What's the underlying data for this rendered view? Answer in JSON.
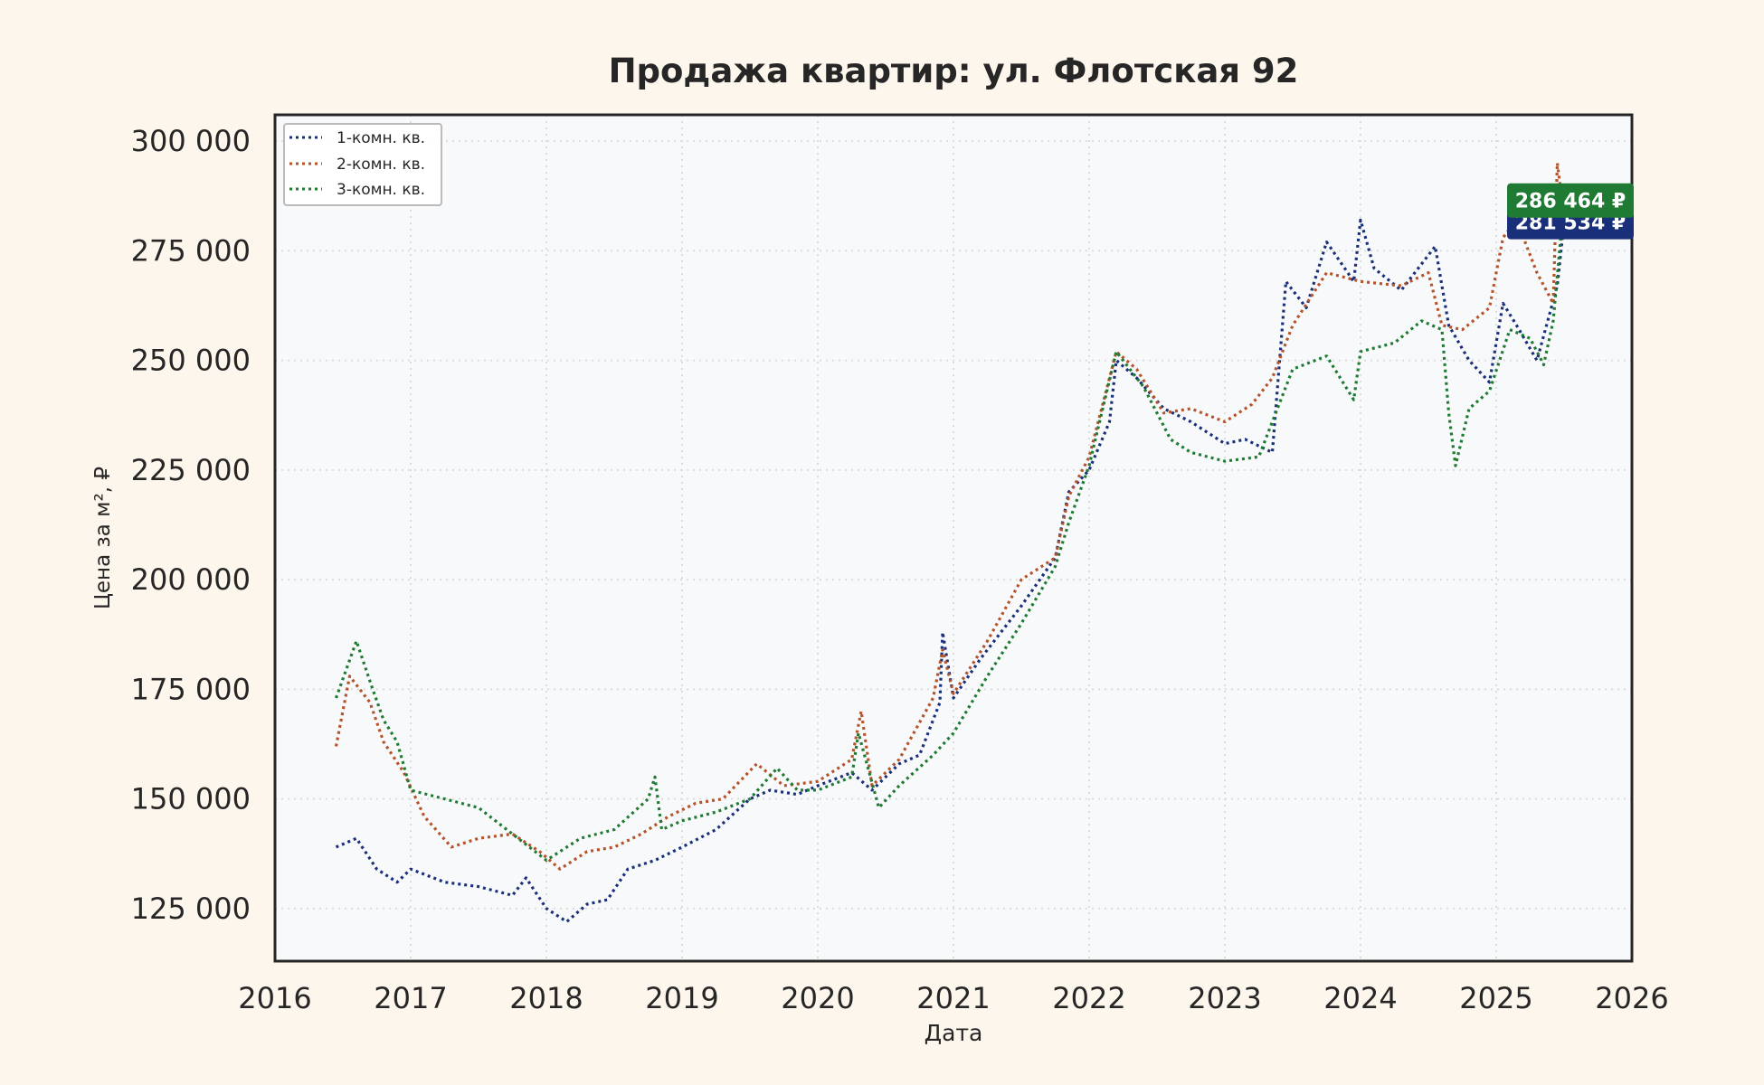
{
  "chart_data": {
    "type": "line",
    "title": "Продажа квартир: ул. Флотская 92",
    "xlabel": "Дата",
    "ylabel": "Цена за м², ₽",
    "xlim": [
      2016,
      2026
    ],
    "ylim": [
      113000,
      306000
    ],
    "x_ticks": [
      2016,
      2017,
      2018,
      2019,
      2020,
      2021,
      2022,
      2023,
      2024,
      2025,
      2026
    ],
    "x_tick_labels": [
      "2016",
      "2017",
      "2018",
      "2019",
      "2020",
      "2021",
      "2022",
      "2023",
      "2024",
      "2025",
      "2026"
    ],
    "y_ticks": [
      125000,
      150000,
      175000,
      200000,
      225000,
      250000,
      275000,
      300000
    ],
    "y_tick_labels": [
      "125 000",
      "150 000",
      "175 000",
      "200 000",
      "225 000",
      "250 000",
      "275 000",
      "300 000"
    ],
    "grid": true,
    "legend_position": "top-left",
    "line_style": "dotted",
    "colors": {
      "page_background": "#fdf6ec",
      "plot_background": "#f8f9fa",
      "text": "#262626",
      "grid": "#dcdcdc"
    },
    "series": [
      {
        "name": "1-комн. кв.",
        "color": "#1a2f7a",
        "end_label": "281 534 ₽",
        "x": [
          2016.45,
          2016.6,
          2016.75,
          2016.9,
          2017.0,
          2017.25,
          2017.5,
          2017.75,
          2017.85,
          2018.0,
          2018.15,
          2018.3,
          2018.45,
          2018.6,
          2018.8,
          2019.0,
          2019.25,
          2019.5,
          2019.65,
          2019.85,
          2020.0,
          2020.25,
          2020.4,
          2020.6,
          2020.75,
          2020.9,
          2020.92,
          2021.0,
          2021.2,
          2021.5,
          2021.75,
          2021.85,
          2022.0,
          2022.15,
          2022.2,
          2022.35,
          2022.55,
          2022.75,
          2023.0,
          2023.15,
          2023.35,
          2023.45,
          2023.6,
          2023.75,
          2023.95,
          2024.0,
          2024.1,
          2024.3,
          2024.55,
          2024.65,
          2024.8,
          2024.95,
          2025.05,
          2025.15,
          2025.3,
          2025.45,
          2025.5
        ],
        "y": [
          139000,
          141000,
          134000,
          131000,
          134000,
          131000,
          130000,
          128000,
          132000,
          125000,
          122000,
          126000,
          127000,
          134000,
          136000,
          139000,
          143000,
          150000,
          152000,
          151000,
          153000,
          156000,
          152000,
          158000,
          160000,
          172000,
          188000,
          173000,
          182000,
          194000,
          205000,
          220000,
          225000,
          236000,
          250000,
          246000,
          239000,
          236000,
          231000,
          232000,
          229000,
          268000,
          262000,
          277000,
          268000,
          282000,
          271000,
          266000,
          276000,
          258000,
          250000,
          245000,
          263000,
          258000,
          250000,
          267000,
          281534
        ]
      },
      {
        "name": "2-комн. кв.",
        "color": "#b5532b",
        "end_label": "",
        "x": [
          2016.45,
          2016.55,
          2016.7,
          2016.8,
          2016.95,
          2017.1,
          2017.3,
          2017.5,
          2017.75,
          2017.95,
          2018.1,
          2018.3,
          2018.5,
          2018.7,
          2018.9,
          2019.1,
          2019.3,
          2019.55,
          2019.75,
          2020.0,
          2020.25,
          2020.32,
          2020.4,
          2020.6,
          2020.85,
          2020.92,
          2021.0,
          2021.25,
          2021.5,
          2021.75,
          2021.85,
          2022.0,
          2022.2,
          2022.35,
          2022.55,
          2022.75,
          2023.0,
          2023.2,
          2023.35,
          2023.5,
          2023.75,
          2024.0,
          2024.3,
          2024.5,
          2024.6,
          2024.75,
          2024.95,
          2025.05,
          2025.15,
          2025.3,
          2025.42,
          2025.45,
          2025.5
        ],
        "y": [
          162000,
          178000,
          172000,
          163000,
          156000,
          146000,
          139000,
          141000,
          142000,
          138000,
          134000,
          138000,
          139000,
          142000,
          146000,
          149000,
          150000,
          158000,
          153000,
          154000,
          159000,
          170000,
          153000,
          159000,
          173000,
          184000,
          174000,
          186000,
          200000,
          205000,
          219000,
          228000,
          252000,
          248000,
          238000,
          239000,
          236000,
          240000,
          246000,
          258000,
          270000,
          268000,
          267000,
          270000,
          258000,
          257000,
          262000,
          278000,
          282000,
          270000,
          263000,
          295000,
          283000
        ]
      },
      {
        "name": "3-комн. кв.",
        "color": "#1f7a33",
        "end_label": "286 464 ₽",
        "x": [
          2016.45,
          2016.6,
          2016.72,
          2016.8,
          2016.9,
          2017.0,
          2017.25,
          2017.5,
          2017.75,
          2018.0,
          2018.25,
          2018.5,
          2018.75,
          2018.8,
          2018.85,
          2019.0,
          2019.25,
          2019.5,
          2019.7,
          2019.85,
          2020.0,
          2020.25,
          2020.3,
          2020.45,
          2020.6,
          2020.85,
          2021.0,
          2021.25,
          2021.5,
          2021.75,
          2021.85,
          2022.0,
          2022.2,
          2022.4,
          2022.6,
          2022.75,
          2023.0,
          2023.25,
          2023.4,
          2023.5,
          2023.75,
          2023.95,
          2024.0,
          2024.25,
          2024.45,
          2024.6,
          2024.65,
          2024.7,
          2024.8,
          2024.95,
          2025.1,
          2025.25,
          2025.35,
          2025.42,
          2025.5
        ],
        "y": [
          173000,
          186000,
          175000,
          168000,
          163000,
          152000,
          150000,
          148000,
          142000,
          136000,
          141000,
          143000,
          150000,
          155000,
          143000,
          145000,
          147000,
          150000,
          157000,
          152000,
          152000,
          155000,
          165000,
          148000,
          153000,
          160000,
          165000,
          178000,
          190000,
          203000,
          213000,
          226000,
          252000,
          244000,
          232000,
          229000,
          227000,
          228000,
          240000,
          248000,
          251000,
          241000,
          252000,
          254000,
          259000,
          257000,
          238000,
          226000,
          239000,
          243000,
          257000,
          255000,
          249000,
          259000,
          286464
        ]
      }
    ]
  }
}
